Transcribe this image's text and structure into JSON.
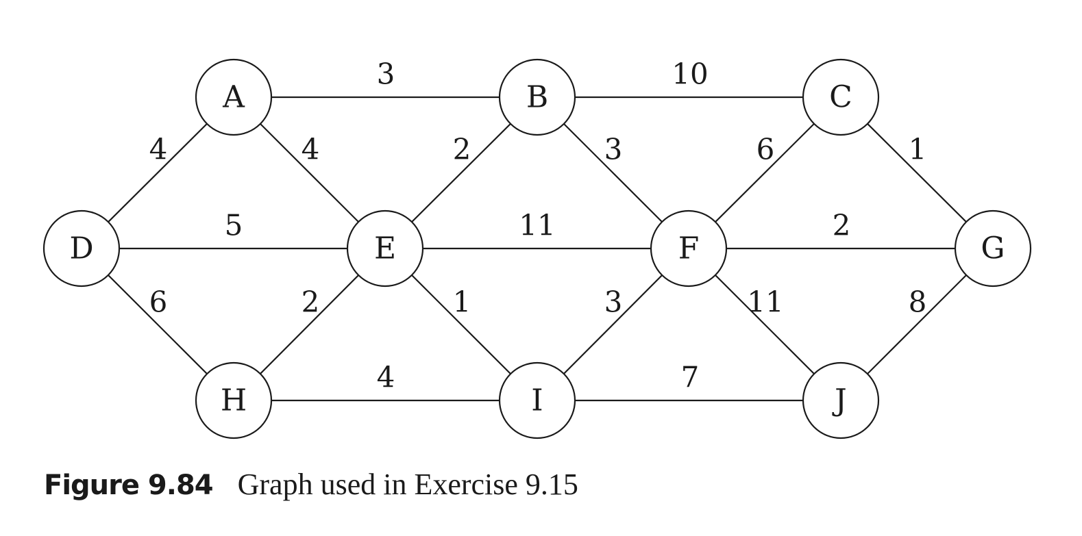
{
  "graph": {
    "nodes": [
      {
        "id": "A",
        "label": "A"
      },
      {
        "id": "B",
        "label": "B"
      },
      {
        "id": "C",
        "label": "C"
      },
      {
        "id": "D",
        "label": "D"
      },
      {
        "id": "E",
        "label": "E"
      },
      {
        "id": "F",
        "label": "F"
      },
      {
        "id": "G",
        "label": "G"
      },
      {
        "id": "H",
        "label": "H"
      },
      {
        "id": "I",
        "label": "I"
      },
      {
        "id": "J",
        "label": "J"
      }
    ],
    "edges": [
      {
        "from": "A",
        "to": "B",
        "weight": "3"
      },
      {
        "from": "B",
        "to": "C",
        "weight": "10"
      },
      {
        "from": "D",
        "to": "A",
        "weight": "4"
      },
      {
        "from": "A",
        "to": "E",
        "weight": "4"
      },
      {
        "from": "E",
        "to": "B",
        "weight": "2"
      },
      {
        "from": "B",
        "to": "F",
        "weight": "3"
      },
      {
        "from": "F",
        "to": "C",
        "weight": "6"
      },
      {
        "from": "C",
        "to": "G",
        "weight": "1"
      },
      {
        "from": "D",
        "to": "E",
        "weight": "5"
      },
      {
        "from": "E",
        "to": "F",
        "weight": "11"
      },
      {
        "from": "F",
        "to": "G",
        "weight": "2"
      },
      {
        "from": "D",
        "to": "H",
        "weight": "6"
      },
      {
        "from": "H",
        "to": "E",
        "weight": "2"
      },
      {
        "from": "E",
        "to": "I",
        "weight": "1"
      },
      {
        "from": "I",
        "to": "F",
        "weight": "3"
      },
      {
        "from": "F",
        "to": "J",
        "weight": "11"
      },
      {
        "from": "J",
        "to": "G",
        "weight": "8"
      },
      {
        "from": "H",
        "to": "I",
        "weight": "4"
      },
      {
        "from": "I",
        "to": "J",
        "weight": "7"
      }
    ]
  },
  "caption": {
    "label": "Figure 9.84",
    "text": "Graph used in Exercise 9.15"
  }
}
